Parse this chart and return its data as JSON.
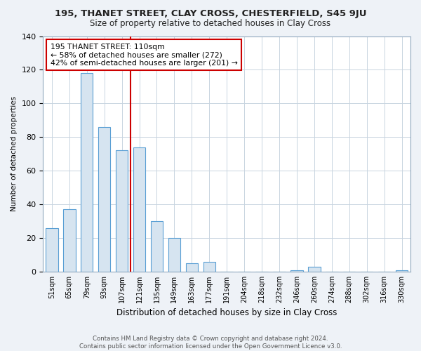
{
  "title": "195, THANET STREET, CLAY CROSS, CHESTERFIELD, S45 9JU",
  "subtitle": "Size of property relative to detached houses in Clay Cross",
  "xlabel": "Distribution of detached houses by size in Clay Cross",
  "ylabel": "Number of detached properties",
  "bar_labels": [
    "51sqm",
    "65sqm",
    "79sqm",
    "93sqm",
    "107sqm",
    "121sqm",
    "135sqm",
    "149sqm",
    "163sqm",
    "177sqm",
    "191sqm",
    "204sqm",
    "218sqm",
    "232sqm",
    "246sqm",
    "260sqm",
    "274sqm",
    "288sqm",
    "302sqm",
    "316sqm",
    "330sqm"
  ],
  "bar_values": [
    26,
    37,
    118,
    86,
    72,
    74,
    30,
    20,
    5,
    6,
    0,
    0,
    0,
    0,
    1,
    3,
    0,
    0,
    0,
    0,
    1
  ],
  "bar_fill_color": "#d6e4f0",
  "bar_edge_color": "#5a9fd4",
  "reference_line_x": 4.5,
  "reference_line_color": "#cc0000",
  "annotation_line1": "195 THANET STREET: 110sqm",
  "annotation_line2": "← 58% of detached houses are smaller (272)",
  "annotation_line3": "42% of semi-detached houses are larger (201) →",
  "annotation_box_color": "white",
  "annotation_box_edge_color": "#cc0000",
  "ylim": [
    0,
    140
  ],
  "yticks": [
    0,
    20,
    40,
    60,
    80,
    100,
    120,
    140
  ],
  "footer_text": "Contains HM Land Registry data © Crown copyright and database right 2024.\nContains public sector information licensed under the Open Government Licence v3.0.",
  "bg_color": "#eef2f7",
  "plot_bg_color": "white",
  "grid_color": "#c8d4e0"
}
